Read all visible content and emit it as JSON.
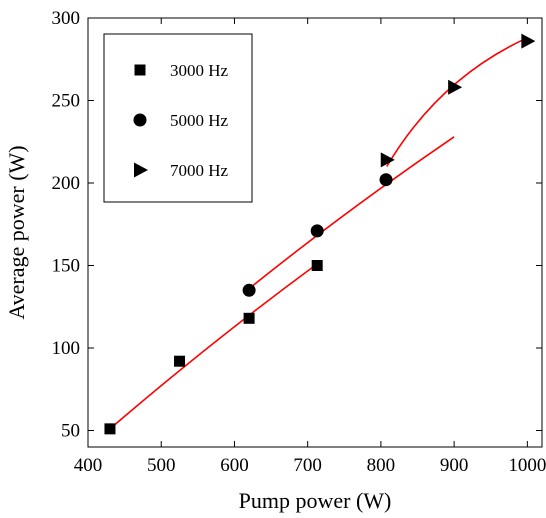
{
  "chart_data": {
    "type": "scatter",
    "xlabel": "Pump power (W)",
    "ylabel": "Average power (W)",
    "xlim": [
      400,
      1020
    ],
    "ylim": [
      40,
      300
    ],
    "xticks": [
      400,
      500,
      600,
      700,
      800,
      900,
      1000
    ],
    "yticks": [
      50,
      100,
      150,
      200,
      250,
      300
    ],
    "grid": false,
    "legend_position": "top-left",
    "fit_color": "#ff0000",
    "marker_color": "#000000",
    "series": [
      {
        "name": "3000 Hz",
        "marker": "square",
        "x": [
          430,
          525,
          620,
          713
        ],
        "y": [
          51,
          92,
          118,
          150
        ],
        "fit_x": [
          430,
          713
        ],
        "fit_y": [
          51,
          151
        ]
      },
      {
        "name": "5000 Hz",
        "marker": "circle",
        "x": [
          620,
          713,
          807
        ],
        "y": [
          135,
          171,
          202
        ],
        "fit_x": [
          620,
          900
        ],
        "fit_y": [
          136,
          228
        ]
      },
      {
        "name": "7000 Hz",
        "marker": "triangle-right",
        "x": [
          808,
          900,
          1000
        ],
        "y": [
          214,
          258,
          286
        ],
        "fit_x": [
          808,
          1000
        ],
        "fit_y": [
          210,
          288
        ]
      }
    ]
  }
}
